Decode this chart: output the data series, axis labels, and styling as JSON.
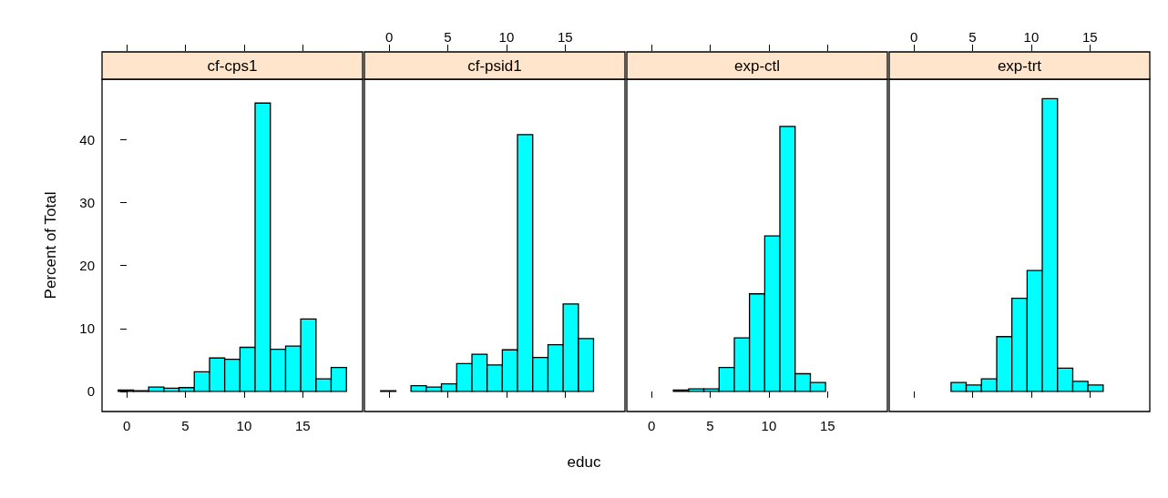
{
  "chart_data": [
    {
      "type": "histogram",
      "title": "cf-cps1",
      "ylabel": "Percent of Total",
      "color": "#00ffff",
      "bins": [
        -0.72,
        0.58,
        1.87,
        3.17,
        4.46,
        5.76,
        7.06,
        8.35,
        9.65,
        10.94,
        12.24,
        13.54,
        14.83,
        16.13,
        17.42,
        18.72
      ],
      "values": [
        0.2,
        0.1,
        0.7,
        0.5,
        0.6,
        3.1,
        5.3,
        5.1,
        7.0,
        45.8,
        6.7,
        7.2,
        11.5,
        2.0,
        3.8
      ],
      "xlim": [
        -2.1,
        20.1
      ],
      "xticks": [
        0,
        5,
        10,
        15
      ],
      "ylim": [
        -3.2,
        49.6
      ],
      "yticks": [
        0,
        10,
        20,
        30,
        40
      ]
    },
    {
      "type": "histogram",
      "title": "cf-psid1",
      "xlabel": "educ",
      "color": "#00ffff",
      "bins": [
        -0.72,
        0.58,
        1.87,
        3.17,
        4.46,
        5.76,
        7.06,
        8.35,
        9.65,
        10.94,
        12.24,
        13.54,
        14.83,
        16.13,
        17.42,
        18.72
      ],
      "values": [
        0.1,
        0,
        0.9,
        0.7,
        1.2,
        4.4,
        5.9,
        4.2,
        6.6,
        40.8,
        5.4,
        7.4,
        13.9,
        8.4,
        0
      ],
      "xlim": [
        -2.1,
        20.1
      ],
      "xticks": [
        0,
        5,
        10,
        15
      ],
      "ylim": [
        -3.2,
        49.6
      ],
      "tick_labels": "x"
    },
    {
      "type": "histogram",
      "title": "exp-ctl",
      "color": "#00ffff",
      "bins": [
        -0.72,
        0.58,
        1.87,
        3.17,
        4.46,
        5.76,
        7.06,
        8.35,
        9.65,
        10.94,
        12.24,
        13.54,
        14.83,
        16.13,
        17.42,
        18.72
      ],
      "values": [
        0,
        0,
        0.2,
        0.4,
        0.4,
        3.8,
        8.5,
        15.5,
        24.7,
        42.1,
        2.8,
        1.4,
        0,
        0,
        0
      ],
      "xlim": [
        -2.1,
        20.1
      ],
      "xticks": [
        0,
        5,
        10,
        15
      ],
      "ylim": [
        -3.2,
        49.6
      ],
      "tick_labels": "x"
    },
    {
      "type": "histogram",
      "title": "exp-trt",
      "color": "#00ffff",
      "bins": [
        -0.72,
        0.58,
        1.87,
        3.17,
        4.46,
        5.76,
        7.06,
        8.35,
        9.65,
        10.94,
        12.24,
        13.54,
        14.83,
        16.13,
        17.42,
        18.72
      ],
      "values": [
        0,
        0,
        0,
        1.4,
        1.0,
        2.0,
        8.7,
        14.8,
        19.2,
        46.5,
        3.7,
        1.6,
        1.0,
        0,
        0
      ],
      "xlim": [
        -2.1,
        20.1
      ],
      "xticks": [
        0,
        5,
        10,
        15
      ],
      "ylim": [
        -3.2,
        49.6
      ],
      "tick_labels": "x"
    }
  ]
}
